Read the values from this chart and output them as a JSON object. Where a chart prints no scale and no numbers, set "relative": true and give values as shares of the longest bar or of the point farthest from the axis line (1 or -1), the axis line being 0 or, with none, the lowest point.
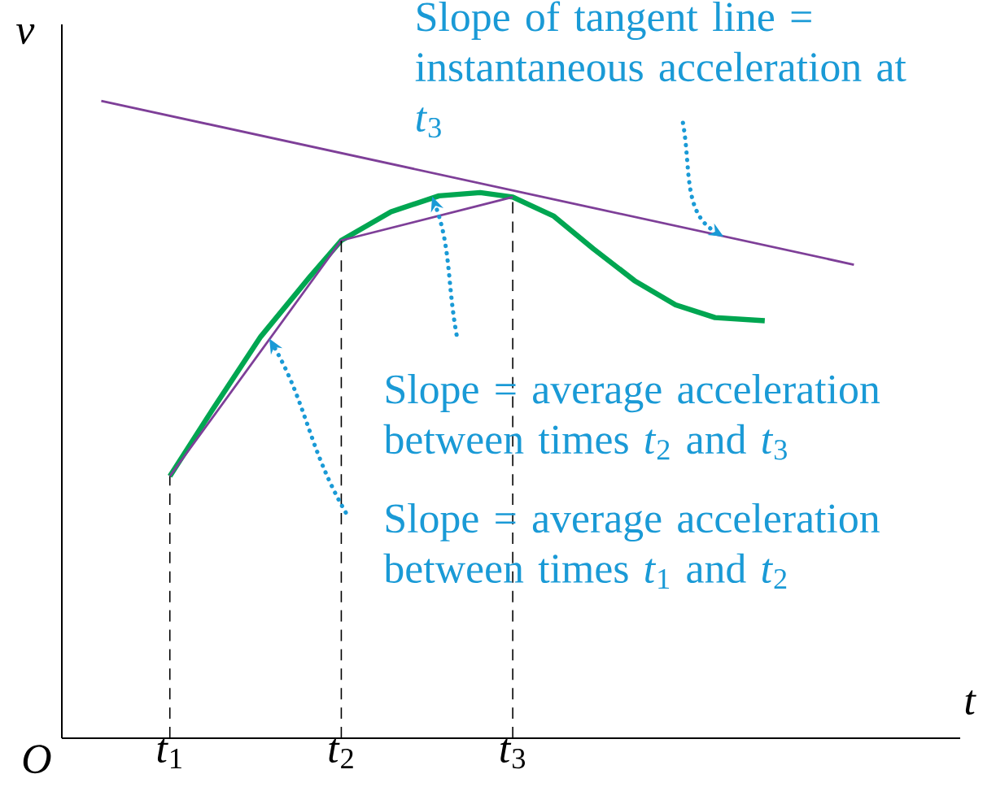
{
  "chart_data": {
    "type": "line",
    "relative": true,
    "xlabel": "t",
    "ylabel": "v",
    "xlim": [
      0.37,
      5.61
    ],
    "xticks": [
      {
        "value": 1,
        "label": "*t*$_{1}$"
      },
      {
        "value": 2,
        "label": "*t*$_{2}$"
      },
      {
        "value": 3,
        "label": "*t*$_{3}$"
      }
    ],
    "tick_labels": "x",
    "grid": false,
    "series": [
      {
        "color": "#00a651",
        "x": [
          1,
          1.25,
          1.53,
          1.82,
          2.0,
          2.29,
          2.57,
          2.81,
          3.0,
          3.24,
          3.47,
          3.71,
          3.95,
          4.18,
          4.47
        ],
        "values": [
          0.411,
          0.516,
          0.63,
          0.725,
          0.781,
          0.826,
          0.851,
          0.856,
          0.849,
          0.819,
          0.768,
          0.718,
          0.68,
          0.66,
          0.655
        ]
      },
      {
        "color": "#7e3f98",
        "x": [
          0.6,
          4.99
        ],
        "values": [
          1.0,
          0.743
        ]
      },
      {
        "color": "#7e3f98",
        "x": [
          1,
          2,
          3
        ],
        "values": [
          0.411,
          0.781,
          0.849
        ]
      }
    ],
    "ref_lines": [
      {
        "axis": "x",
        "value": 1,
        "color": "#000000",
        "line_style": "dashed"
      },
      {
        "axis": "x",
        "value": 2,
        "color": "#000000",
        "line_style": "dashed"
      },
      {
        "axis": "x",
        "value": 3,
        "color": "#000000",
        "line_style": "dashed"
      }
    ],
    "annotations": [
      {
        "text": "Slope of tangent line = instantaneous acceleration at *t*$_{3}$",
        "x": 4.23,
        "y": 0.787
      },
      {
        "text": "Slope = average acceleration between times *t*$_{2}$ and *t*$_{3}$",
        "x": 2.53,
        "y": 0.85
      },
      {
        "text": "Slope = average acceleration between times *t*$_{1}$ and *t*$_{2}$",
        "x": 1.58,
        "y": 0.627
      },
      "O"
    ]
  }
}
